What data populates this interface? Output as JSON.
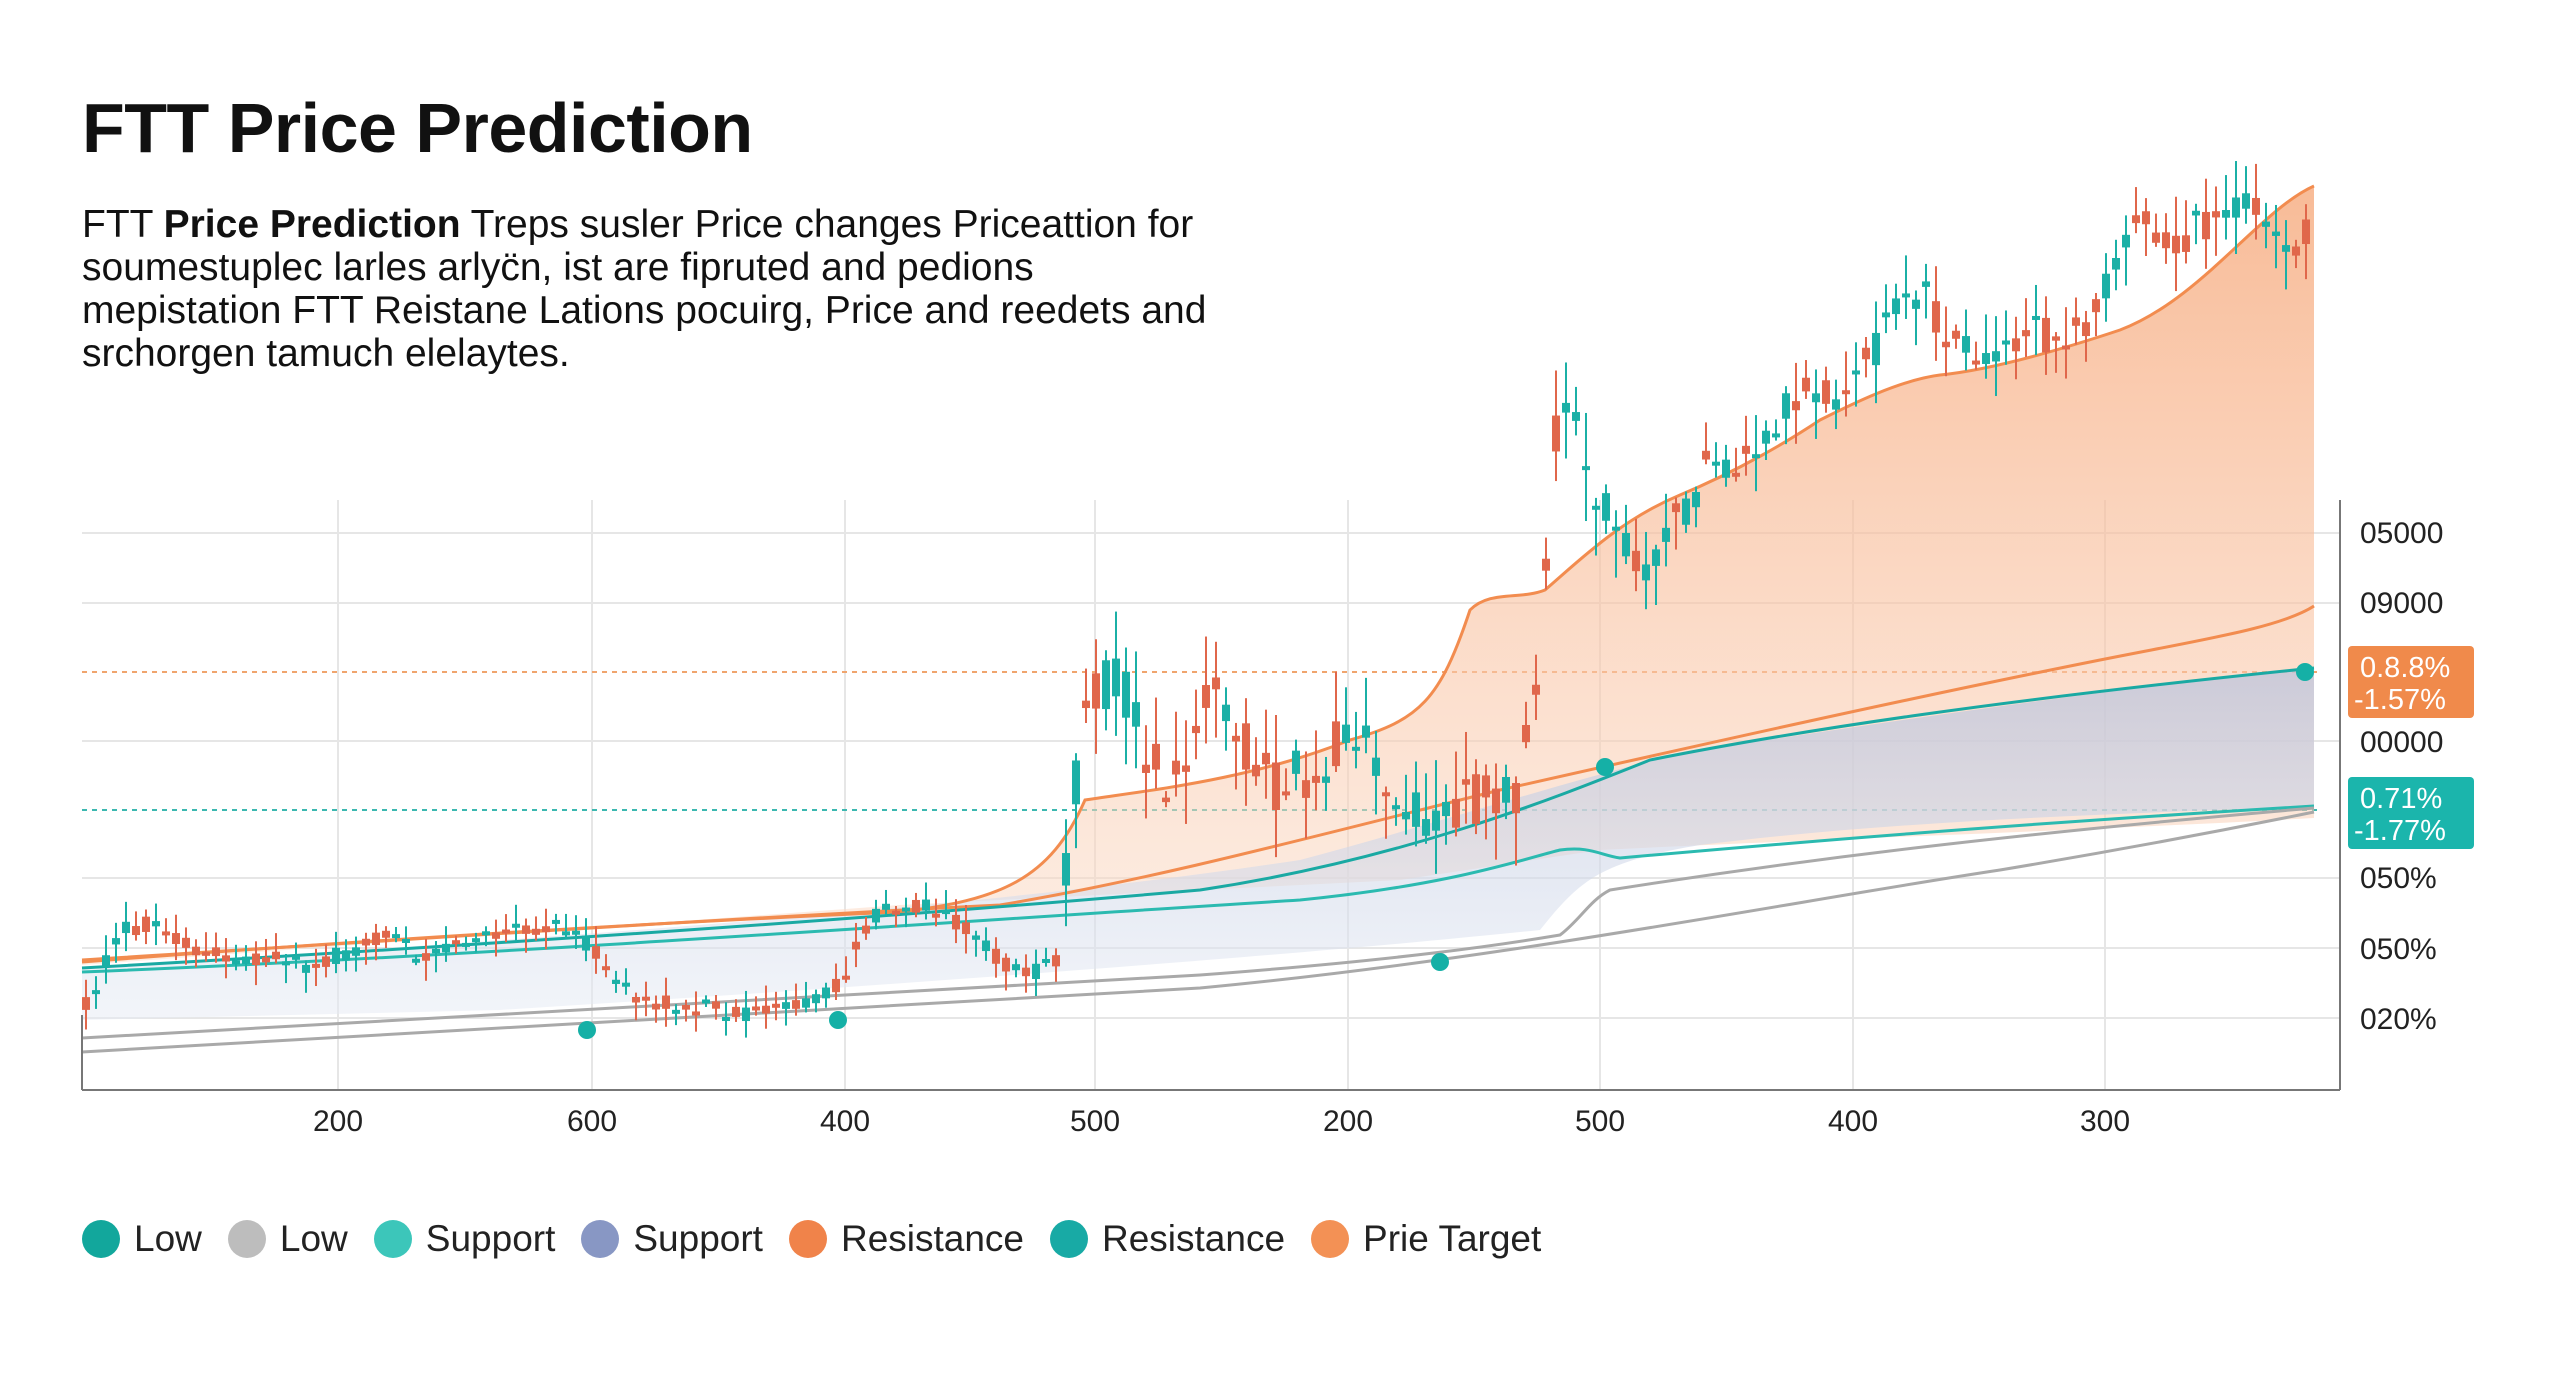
{
  "title": "FTT Price Prediction",
  "description": {
    "lead": "FTT ",
    "bold": "Price Prediction",
    "rest": " Treps susler Price changes Priceattion for soumestuplec larles arlyc̈n, ist are fipruted and pedions mepistation FTT Reistane Lations pocuirg, Price and reedets and srchorgen tamuch elelaytes."
  },
  "chart_data": {
    "type": "candlestick",
    "x_tick_labels": [
      "200",
      "600",
      "400",
      "500",
      "200",
      "500",
      "400",
      "300"
    ],
    "y_tick_labels": [
      "05000",
      "09000",
      "00000",
      "050%",
      "050%",
      "020%"
    ],
    "right_badges": [
      {
        "line1": "0.8.8%",
        "line2": "-1.57%",
        "color": "#f08a4b"
      },
      {
        "line1": "0.71%",
        "line2": "-1.77%",
        "color": "#1bb5ac"
      }
    ],
    "legend": [
      {
        "label": "Low",
        "color": "#12a79c"
      },
      {
        "label": "Low",
        "color": "#bdbdbd"
      },
      {
        "label": "Support",
        "color": "#3cc6ba"
      },
      {
        "label": "Support",
        "color": "#8897c4"
      },
      {
        "label": "Resistance",
        "color": "#f0834a"
      },
      {
        "label": "Resistance",
        "color": "#18aaa5"
      },
      {
        "label": "Prie Target",
        "color": "#f39155"
      }
    ],
    "grid": true,
    "legend_position": "bottom-left",
    "colors": {
      "up": "#1bb0a6",
      "down": "#e0674b",
      "orange": "#f28c4f",
      "teal": "#1aa9a3",
      "gray": "#a9a9a9"
    }
  }
}
